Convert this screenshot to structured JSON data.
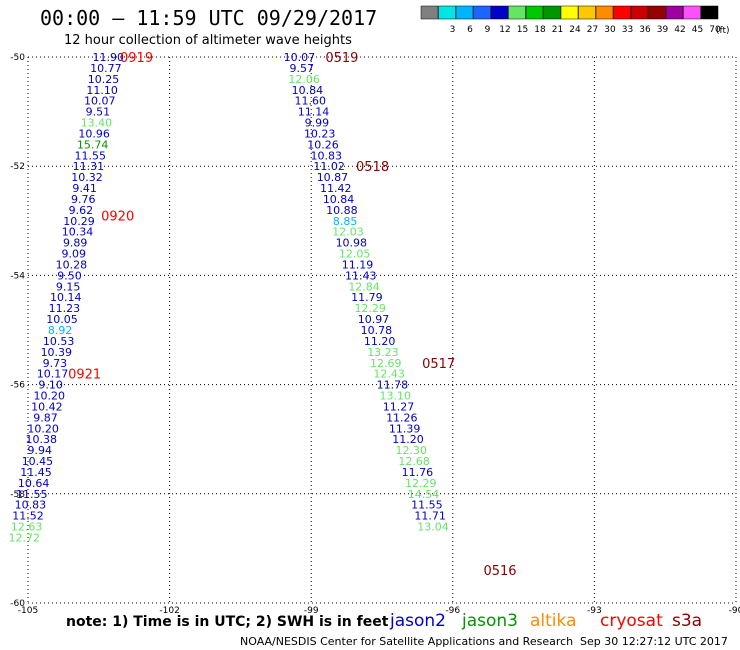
{
  "header": {
    "title": "00:00 – 11:59 UTC 09/29/2017",
    "subtitle": "12 hour collection of altimeter wave heights",
    "scale_unit": "(ft)"
  },
  "color_scale": [
    {
      "label": "",
      "color": "#808080"
    },
    {
      "label": "3",
      "color": "#00e5e5"
    },
    {
      "label": "6",
      "color": "#00b4ff"
    },
    {
      "label": "9",
      "color": "#1e64ff"
    },
    {
      "label": "12",
      "color": "#0000c8"
    },
    {
      "label": "15",
      "color": "#64e664"
    },
    {
      "label": "18",
      "color": "#00c800"
    },
    {
      "label": "21",
      "color": "#009600"
    },
    {
      "label": "24",
      "color": "#ffff00"
    },
    {
      "label": "27",
      "color": "#ffc800"
    },
    {
      "label": "30",
      "color": "#ff8c00"
    },
    {
      "label": "33",
      "color": "#ff0000"
    },
    {
      "label": "36",
      "color": "#c80000"
    },
    {
      "label": "39",
      "color": "#960000"
    },
    {
      "label": "42",
      "color": "#a000a0"
    },
    {
      "label": "45",
      "color": "#ff50ff"
    },
    {
      "label": "70",
      "color": "#000000"
    }
  ],
  "colors": {
    "jason2": "#0000c8",
    "jason3": "#64e664",
    "blue_light": "#00b4ff",
    "time_red": "#ff0000",
    "time_dark": "#8b0000",
    "altika": "#ff8c00",
    "cryosat": "#ff0000",
    "s3a": "#8b0000"
  },
  "footer": {
    "note": "note: 1) Time is in UTC; 2) SWH is in feet",
    "credit": "NOAA/NESDIS Center for Satellite Applications and Research",
    "timestamp": "Sep 30 12:27:12 UTC 2017"
  },
  "legend": [
    {
      "name": "jason2",
      "color": "#0000c8"
    },
    {
      "name": "jason3",
      "color": "#009600"
    },
    {
      "name": "altika",
      "color": "#ff8c00"
    },
    {
      "name": "cryosat",
      "color": "#ff0000"
    },
    {
      "name": "s3a",
      "color": "#8b0000"
    }
  ],
  "chart_data": {
    "type": "scatter",
    "xlim": [
      -105,
      -90
    ],
    "ylim": [
      -60,
      -50
    ],
    "x_ticks": [
      -105,
      -102,
      -99,
      -96,
      -93,
      -90
    ],
    "x_tick_labels": [
      "-105",
      "-102",
      "-99",
      "-96",
      "-93",
      "-90"
    ],
    "y_ticks": [
      -50,
      -52,
      -54,
      -56,
      -58,
      -60
    ],
    "y_tick_labels": [
      "-50",
      "-52",
      "-54",
      "-56",
      "-58",
      "-60"
    ],
    "grid": true,
    "tracks": [
      {
        "points": [
          {
            "lon": -103.3,
            "lat": -50.0,
            "v": "11.90",
            "c": "#0000c8"
          },
          {
            "lon": -103.35,
            "lat": -50.2,
            "v": "10.77",
            "c": "#0000c8"
          },
          {
            "lon": -103.4,
            "lat": -50.4,
            "v": "10.25",
            "c": "#0000c8"
          },
          {
            "lon": -103.43,
            "lat": -50.6,
            "v": "11.10",
            "c": "#0000c8"
          },
          {
            "lon": -103.48,
            "lat": -50.8,
            "v": "10.07",
            "c": "#0000c8"
          },
          {
            "lon": -103.52,
            "lat": -51.0,
            "v": "9.51",
            "c": "#0000c8"
          },
          {
            "lon": -103.55,
            "lat": -51.2,
            "v": "13.40",
            "c": "#64e664"
          },
          {
            "lon": -103.6,
            "lat": -51.4,
            "v": "10.96",
            "c": "#0000c8"
          },
          {
            "lon": -103.63,
            "lat": -51.6,
            "v": "15.74",
            "c": "#009600"
          },
          {
            "lon": -103.68,
            "lat": -51.8,
            "v": "11.55",
            "c": "#0000c8"
          },
          {
            "lon": -103.72,
            "lat": -52.0,
            "v": "11.31",
            "c": "#0000c8"
          },
          {
            "lon": -103.75,
            "lat": -52.2,
            "v": "10.32",
            "c": "#0000c8"
          },
          {
            "lon": -103.8,
            "lat": -52.4,
            "v": "9.41",
            "c": "#0000c8"
          },
          {
            "lon": -103.83,
            "lat": -52.6,
            "v": "9.76",
            "c": "#0000c8"
          },
          {
            "lon": -103.88,
            "lat": -52.8,
            "v": "9.62",
            "c": "#0000c8"
          },
          {
            "lon": -103.92,
            "lat": -53.0,
            "v": "10.29",
            "c": "#0000c8"
          },
          {
            "lon": -103.95,
            "lat": -53.2,
            "v": "10.34",
            "c": "#0000c8"
          },
          {
            "lon": -104.0,
            "lat": -53.4,
            "v": "9.89",
            "c": "#0000c8"
          },
          {
            "lon": -104.03,
            "lat": -53.6,
            "v": "9.09",
            "c": "#0000c8"
          },
          {
            "lon": -104.08,
            "lat": -53.8,
            "v": "10.28",
            "c": "#0000c8"
          },
          {
            "lon": -104.12,
            "lat": -54.0,
            "v": "9.50",
            "c": "#0000c8"
          },
          {
            "lon": -104.15,
            "lat": -54.2,
            "v": "9.15",
            "c": "#0000c8"
          },
          {
            "lon": -104.2,
            "lat": -54.4,
            "v": "10.14",
            "c": "#0000c8"
          },
          {
            "lon": -104.23,
            "lat": -54.6,
            "v": "11.23",
            "c": "#0000c8"
          },
          {
            "lon": -104.28,
            "lat": -54.8,
            "v": "10.05",
            "c": "#0000c8"
          },
          {
            "lon": -104.32,
            "lat": -55.0,
            "v": "8.92",
            "c": "#00b4ff"
          },
          {
            "lon": -104.35,
            "lat": -55.2,
            "v": "10.53",
            "c": "#0000c8"
          },
          {
            "lon": -104.4,
            "lat": -55.4,
            "v": "10.39",
            "c": "#0000c8"
          },
          {
            "lon": -104.43,
            "lat": -55.6,
            "v": "9.73",
            "c": "#0000c8"
          },
          {
            "lon": -104.48,
            "lat": -55.8,
            "v": "10.17",
            "c": "#0000c8"
          },
          {
            "lon": -104.52,
            "lat": -56.0,
            "v": "9.10",
            "c": "#0000c8"
          },
          {
            "lon": -104.55,
            "lat": -56.2,
            "v": "10.20",
            "c": "#0000c8"
          },
          {
            "lon": -104.6,
            "lat": -56.4,
            "v": "10.42",
            "c": "#0000c8"
          },
          {
            "lon": -104.63,
            "lat": -56.6,
            "v": "9.87",
            "c": "#0000c8"
          },
          {
            "lon": -104.68,
            "lat": -56.8,
            "v": "10.20",
            "c": "#0000c8"
          },
          {
            "lon": -104.72,
            "lat": -57.0,
            "v": "10.38",
            "c": "#0000c8"
          },
          {
            "lon": -104.75,
            "lat": -57.2,
            "v": "9.94",
            "c": "#0000c8"
          },
          {
            "lon": -104.8,
            "lat": -57.4,
            "v": "10.45",
            "c": "#0000c8"
          },
          {
            "lon": -104.83,
            "lat": -57.6,
            "v": "11.45",
            "c": "#0000c8"
          },
          {
            "lon": -104.88,
            "lat": -57.8,
            "v": "10.64",
            "c": "#0000c8"
          },
          {
            "lon": -104.92,
            "lat": -58.0,
            "v": "11.55",
            "c": "#0000c8"
          },
          {
            "lon": -104.95,
            "lat": -58.2,
            "v": "10.83",
            "c": "#0000c8"
          },
          {
            "lon": -105.0,
            "lat": -58.4,
            "v": "11.52",
            "c": "#0000c8"
          },
          {
            "lon": -105.03,
            "lat": -58.6,
            "v": "12.63",
            "c": "#64e664"
          },
          {
            "lon": -105.08,
            "lat": -58.8,
            "v": "12.72",
            "c": "#64e664"
          }
        ],
        "times": [
          {
            "lon": -102.7,
            "lat": -50.0,
            "t": "0919",
            "c": "#ff0000"
          },
          {
            "lon": -103.1,
            "lat": -52.9,
            "t": "0920",
            "c": "#ff0000"
          },
          {
            "lon": -103.8,
            "lat": -55.8,
            "t": "0921",
            "c": "#ff0000"
          }
        ]
      },
      {
        "points": [
          {
            "lon": -99.25,
            "lat": -50.0,
            "v": "10.07",
            "c": "#0000c8"
          },
          {
            "lon": -99.2,
            "lat": -50.2,
            "v": "9.57",
            "c": "#0000c8"
          },
          {
            "lon": -99.15,
            "lat": -50.4,
            "v": "12.06",
            "c": "#64e664"
          },
          {
            "lon": -99.08,
            "lat": -50.6,
            "v": "10.84",
            "c": "#0000c8"
          },
          {
            "lon": -99.02,
            "lat": -50.8,
            "v": "11.60",
            "c": "#0000c8"
          },
          {
            "lon": -98.95,
            "lat": -51.0,
            "v": "11.14",
            "c": "#0000c8"
          },
          {
            "lon": -98.88,
            "lat": -51.2,
            "v": "9.99",
            "c": "#0000c8"
          },
          {
            "lon": -98.82,
            "lat": -51.4,
            "v": "10.23",
            "c": "#0000c8"
          },
          {
            "lon": -98.75,
            "lat": -51.6,
            "v": "10.26",
            "c": "#0000c8"
          },
          {
            "lon": -98.68,
            "lat": -51.8,
            "v": "10.83",
            "c": "#0000c8"
          },
          {
            "lon": -98.62,
            "lat": -52.0,
            "v": "11.02",
            "c": "#0000c8"
          },
          {
            "lon": -98.55,
            "lat": -52.2,
            "v": "10.87",
            "c": "#0000c8"
          },
          {
            "lon": -98.48,
            "lat": -52.4,
            "v": "11.42",
            "c": "#0000c8"
          },
          {
            "lon": -98.42,
            "lat": -52.6,
            "v": "10.84",
            "c": "#0000c8"
          },
          {
            "lon": -98.35,
            "lat": -52.8,
            "v": "10.88",
            "c": "#0000c8"
          },
          {
            "lon": -98.28,
            "lat": -53.0,
            "v": "8.85",
            "c": "#00b4ff"
          },
          {
            "lon": -98.22,
            "lat": -53.2,
            "v": "12.03",
            "c": "#64e664"
          },
          {
            "lon": -98.15,
            "lat": -53.4,
            "v": "10.98",
            "c": "#0000c8"
          },
          {
            "lon": -98.08,
            "lat": -53.6,
            "v": "12.05",
            "c": "#64e664"
          },
          {
            "lon": -98.02,
            "lat": -53.8,
            "v": "11.19",
            "c": "#0000c8"
          },
          {
            "lon": -97.95,
            "lat": -54.0,
            "v": "11.43",
            "c": "#0000c8"
          },
          {
            "lon": -97.88,
            "lat": -54.2,
            "v": "12.84",
            "c": "#64e664"
          },
          {
            "lon": -97.82,
            "lat": -54.4,
            "v": "11.79",
            "c": "#0000c8"
          },
          {
            "lon": -97.75,
            "lat": -54.6,
            "v": "12.29",
            "c": "#64e664"
          },
          {
            "lon": -97.68,
            "lat": -54.8,
            "v": "10.97",
            "c": "#0000c8"
          },
          {
            "lon": -97.62,
            "lat": -55.0,
            "v": "10.78",
            "c": "#0000c8"
          },
          {
            "lon": -97.55,
            "lat": -55.2,
            "v": "11.20",
            "c": "#0000c8"
          },
          {
            "lon": -97.48,
            "lat": -55.4,
            "v": "13.23",
            "c": "#64e664"
          },
          {
            "lon": -97.42,
            "lat": -55.6,
            "v": "12.69",
            "c": "#64e664"
          },
          {
            "lon": -97.35,
            "lat": -55.8,
            "v": "12.43",
            "c": "#64e664"
          },
          {
            "lon": -97.28,
            "lat": -56.0,
            "v": "11.78",
            "c": "#0000c8"
          },
          {
            "lon": -97.22,
            "lat": -56.2,
            "v": "13.10",
            "c": "#64e664"
          },
          {
            "lon": -97.15,
            "lat": -56.4,
            "v": "11.27",
            "c": "#0000c8"
          },
          {
            "lon": -97.08,
            "lat": -56.6,
            "v": "11.26",
            "c": "#0000c8"
          },
          {
            "lon": -97.02,
            "lat": -56.8,
            "v": "11.39",
            "c": "#0000c8"
          },
          {
            "lon": -96.95,
            "lat": -57.0,
            "v": "11.20",
            "c": "#0000c8"
          },
          {
            "lon": -96.88,
            "lat": -57.2,
            "v": "12.30",
            "c": "#64e664"
          },
          {
            "lon": -96.82,
            "lat": -57.4,
            "v": "12.68",
            "c": "#64e664"
          },
          {
            "lon": -96.75,
            "lat": -57.6,
            "v": "11.76",
            "c": "#0000c8"
          },
          {
            "lon": -96.68,
            "lat": -57.8,
            "v": "12.29",
            "c": "#64e664"
          },
          {
            "lon": -96.62,
            "lat": -58.0,
            "v": "14.54",
            "c": "#64e664"
          },
          {
            "lon": -96.55,
            "lat": -58.2,
            "v": "11.55",
            "c": "#0000c8"
          },
          {
            "lon": -96.48,
            "lat": -58.4,
            "v": "11.71",
            "c": "#0000c8"
          },
          {
            "lon": -96.42,
            "lat": -58.6,
            "v": "13.04",
            "c": "#64e664"
          }
        ],
        "times": [
          {
            "lon": -98.35,
            "lat": -50.0,
            "t": "0519",
            "c": "#8b0000"
          },
          {
            "lon": -97.7,
            "lat": -52.0,
            "t": "0518",
            "c": "#8b0000"
          },
          {
            "lon": -96.3,
            "lat": -55.6,
            "t": "0517",
            "c": "#8b0000"
          },
          {
            "lon": -95.0,
            "lat": -59.4,
            "t": "0516",
            "c": "#8b0000"
          }
        ]
      }
    ]
  }
}
